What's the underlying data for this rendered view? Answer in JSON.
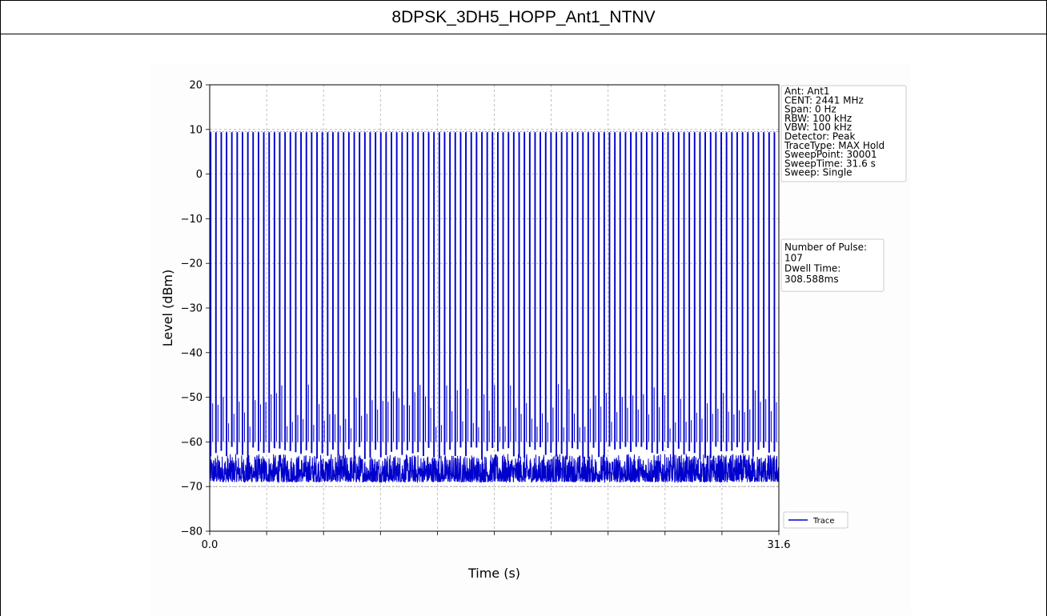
{
  "header": {
    "title": "8DPSK_3DH5_HOPP_Ant1_NTNV"
  },
  "chart_data": {
    "type": "line",
    "xlabel": "Time (s)",
    "ylabel": "Level (dBm)",
    "xlim": [
      0.0,
      31.6
    ],
    "ylim": [
      -80,
      20
    ],
    "x_ticks": [
      "0.0",
      "31.6"
    ],
    "y_ticks": [
      20,
      10,
      0,
      -10,
      -20,
      -30,
      -40,
      -50,
      -60,
      -70,
      -80
    ],
    "y_tick_labels": [
      "20",
      "10",
      "0",
      "−10",
      "−20",
      "−30",
      "−40",
      "−50",
      "−60",
      "−70",
      "−80"
    ],
    "grid": true,
    "reference_lines": [
      9.5,
      -70
    ],
    "series": [
      {
        "name": "Trace",
        "color": "#0000cc",
        "pulse_count": 107,
        "pulse_peak_dbm": 9.3,
        "noise_floor_dbm": [
          -69,
          -62
        ],
        "t_start": 0.0,
        "t_end": 31.6
      }
    ],
    "legend": {
      "position": "bottom-right",
      "entries": [
        "Trace"
      ]
    },
    "info_box": [
      "Ant: Ant1",
      "CENT: 2441 MHz",
      "Span: 0 Hz",
      "RBW: 100 kHz",
      "VBW: 100 kHz",
      "Detector: Peak",
      "TraceType: MAX Hold",
      "SweepPoint: 30001",
      "SweepTime: 31.6 s",
      "Sweep: Single"
    ],
    "result_box": [
      "Number of Pulse:",
      " 107",
      "Dwell Time:",
      " 308.588ms"
    ]
  }
}
